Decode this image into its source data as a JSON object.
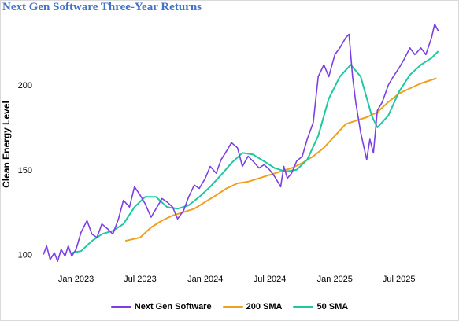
{
  "chart_data": {
    "type": "line",
    "title": "Next Gen Software Three-Year Returns",
    "ylabel": "Clean Energy Level",
    "xlabel": "",
    "ylim": [
      90,
      240
    ],
    "y_ticks": [
      100,
      150,
      200
    ],
    "x_ticks": [
      {
        "label": "Jan 2023",
        "date": "2023-01-01"
      },
      {
        "label": "Jul 2023",
        "date": "2023-07-01"
      },
      {
        "label": "Jan 2024",
        "date": "2024-01-01"
      },
      {
        "label": "Jul 2024",
        "date": "2024-07-01"
      },
      {
        "label": "Jan 2025",
        "date": "2025-01-01"
      },
      {
        "label": "Jul 2025",
        "date": "2025-07-01"
      }
    ],
    "x_range": [
      "2022-09-15",
      "2025-11-01"
    ],
    "grid": false,
    "legend": "bottom",
    "series": [
      {
        "name": "Next Gen Software",
        "color": "#7b3fe4",
        "points": [
          [
            "2022-10-01",
            100
          ],
          [
            "2022-10-10",
            105
          ],
          [
            "2022-10-20",
            97
          ],
          [
            "2022-11-01",
            101
          ],
          [
            "2022-11-10",
            96
          ],
          [
            "2022-11-20",
            103
          ],
          [
            "2022-12-01",
            99
          ],
          [
            "2022-12-10",
            105
          ],
          [
            "2022-12-20",
            99
          ],
          [
            "2023-01-01",
            103
          ],
          [
            "2023-01-15",
            113
          ],
          [
            "2023-02-01",
            120
          ],
          [
            "2023-02-15",
            112
          ],
          [
            "2023-03-01",
            110
          ],
          [
            "2023-03-15",
            118
          ],
          [
            "2023-04-01",
            115
          ],
          [
            "2023-04-15",
            112
          ],
          [
            "2023-05-01",
            121
          ],
          [
            "2023-05-15",
            132
          ],
          [
            "2023-06-01",
            128
          ],
          [
            "2023-06-15",
            140
          ],
          [
            "2023-07-01",
            135
          ],
          [
            "2023-07-15",
            130
          ],
          [
            "2023-08-01",
            122
          ],
          [
            "2023-08-15",
            127
          ],
          [
            "2023-09-01",
            133
          ],
          [
            "2023-09-15",
            131
          ],
          [
            "2023-10-01",
            128
          ],
          [
            "2023-10-15",
            121
          ],
          [
            "2023-11-01",
            126
          ],
          [
            "2023-11-15",
            134
          ],
          [
            "2023-12-01",
            141
          ],
          [
            "2023-12-15",
            139
          ],
          [
            "2024-01-01",
            145
          ],
          [
            "2024-01-15",
            152
          ],
          [
            "2024-02-01",
            148
          ],
          [
            "2024-02-15",
            156
          ],
          [
            "2024-03-01",
            161
          ],
          [
            "2024-03-15",
            166
          ],
          [
            "2024-04-01",
            163
          ],
          [
            "2024-04-15",
            152
          ],
          [
            "2024-05-01",
            158
          ],
          [
            "2024-05-15",
            155
          ],
          [
            "2024-06-01",
            151
          ],
          [
            "2024-06-15",
            153
          ],
          [
            "2024-07-01",
            150
          ],
          [
            "2024-07-15",
            146
          ],
          [
            "2024-08-01",
            140
          ],
          [
            "2024-08-10",
            152
          ],
          [
            "2024-08-20",
            145
          ],
          [
            "2024-09-01",
            148
          ],
          [
            "2024-09-15",
            155
          ],
          [
            "2024-10-01",
            158
          ],
          [
            "2024-10-15",
            168
          ],
          [
            "2024-11-01",
            178
          ],
          [
            "2024-11-15",
            205
          ],
          [
            "2024-12-01",
            212
          ],
          [
            "2024-12-15",
            205
          ],
          [
            "2025-01-01",
            218
          ],
          [
            "2025-01-15",
            222
          ],
          [
            "2025-02-01",
            228
          ],
          [
            "2025-02-10",
            230
          ],
          [
            "2025-02-20",
            205
          ],
          [
            "2025-03-01",
            190
          ],
          [
            "2025-03-15",
            172
          ],
          [
            "2025-04-01",
            156
          ],
          [
            "2025-04-10",
            168
          ],
          [
            "2025-04-20",
            160
          ],
          [
            "2025-05-01",
            185
          ],
          [
            "2025-05-15",
            190
          ],
          [
            "2025-06-01",
            200
          ],
          [
            "2025-06-15",
            205
          ],
          [
            "2025-07-01",
            210
          ],
          [
            "2025-07-15",
            215
          ],
          [
            "2025-08-01",
            222
          ],
          [
            "2025-08-15",
            218
          ],
          [
            "2025-09-01",
            222
          ],
          [
            "2025-09-15",
            218
          ],
          [
            "2025-10-01",
            228
          ],
          [
            "2025-10-10",
            236
          ],
          [
            "2025-10-20",
            232
          ]
        ]
      },
      {
        "name": "200 SMA",
        "color": "#f0a020",
        "points": [
          [
            "2023-05-20",
            108
          ],
          [
            "2023-07-01",
            110
          ],
          [
            "2023-08-01",
            116
          ],
          [
            "2023-09-01",
            120
          ],
          [
            "2023-10-01",
            123
          ],
          [
            "2023-11-01",
            125
          ],
          [
            "2023-12-01",
            127
          ],
          [
            "2024-01-01",
            131
          ],
          [
            "2024-02-01",
            135
          ],
          [
            "2024-03-01",
            139
          ],
          [
            "2024-04-01",
            142
          ],
          [
            "2024-05-01",
            143
          ],
          [
            "2024-06-01",
            145
          ],
          [
            "2024-07-01",
            147
          ],
          [
            "2024-08-01",
            149
          ],
          [
            "2024-09-01",
            151
          ],
          [
            "2024-10-01",
            154
          ],
          [
            "2024-11-01",
            158
          ],
          [
            "2024-12-01",
            163
          ],
          [
            "2025-01-01",
            170
          ],
          [
            "2025-02-01",
            177
          ],
          [
            "2025-03-01",
            179
          ],
          [
            "2025-04-01",
            181
          ],
          [
            "2025-05-01",
            184
          ],
          [
            "2025-06-01",
            190
          ],
          [
            "2025-07-01",
            195
          ],
          [
            "2025-08-01",
            198
          ],
          [
            "2025-09-01",
            201
          ],
          [
            "2025-10-15",
            204
          ]
        ]
      },
      {
        "name": "50 SMA",
        "color": "#1fc9a0",
        "points": [
          [
            "2022-12-20",
            101
          ],
          [
            "2023-01-15",
            102
          ],
          [
            "2023-02-15",
            108
          ],
          [
            "2023-03-15",
            112
          ],
          [
            "2023-04-15",
            114
          ],
          [
            "2023-05-15",
            118
          ],
          [
            "2023-06-15",
            128
          ],
          [
            "2023-07-15",
            134
          ],
          [
            "2023-08-15",
            134
          ],
          [
            "2023-09-15",
            128
          ],
          [
            "2023-10-15",
            127
          ],
          [
            "2023-11-15",
            129
          ],
          [
            "2023-12-15",
            134
          ],
          [
            "2024-01-15",
            140
          ],
          [
            "2024-02-15",
            147
          ],
          [
            "2024-03-15",
            154
          ],
          [
            "2024-04-15",
            160
          ],
          [
            "2024-05-15",
            159
          ],
          [
            "2024-06-15",
            155
          ],
          [
            "2024-07-15",
            151
          ],
          [
            "2024-08-15",
            149
          ],
          [
            "2024-09-15",
            150
          ],
          [
            "2024-10-15",
            156
          ],
          [
            "2024-11-15",
            170
          ],
          [
            "2024-12-15",
            192
          ],
          [
            "2025-01-15",
            205
          ],
          [
            "2025-02-15",
            212
          ],
          [
            "2025-03-15",
            205
          ],
          [
            "2025-04-15",
            182
          ],
          [
            "2025-05-01",
            175
          ],
          [
            "2025-06-01",
            182
          ],
          [
            "2025-07-01",
            196
          ],
          [
            "2025-08-01",
            206
          ],
          [
            "2025-09-01",
            212
          ],
          [
            "2025-10-01",
            216
          ],
          [
            "2025-10-20",
            220
          ]
        ]
      }
    ]
  }
}
